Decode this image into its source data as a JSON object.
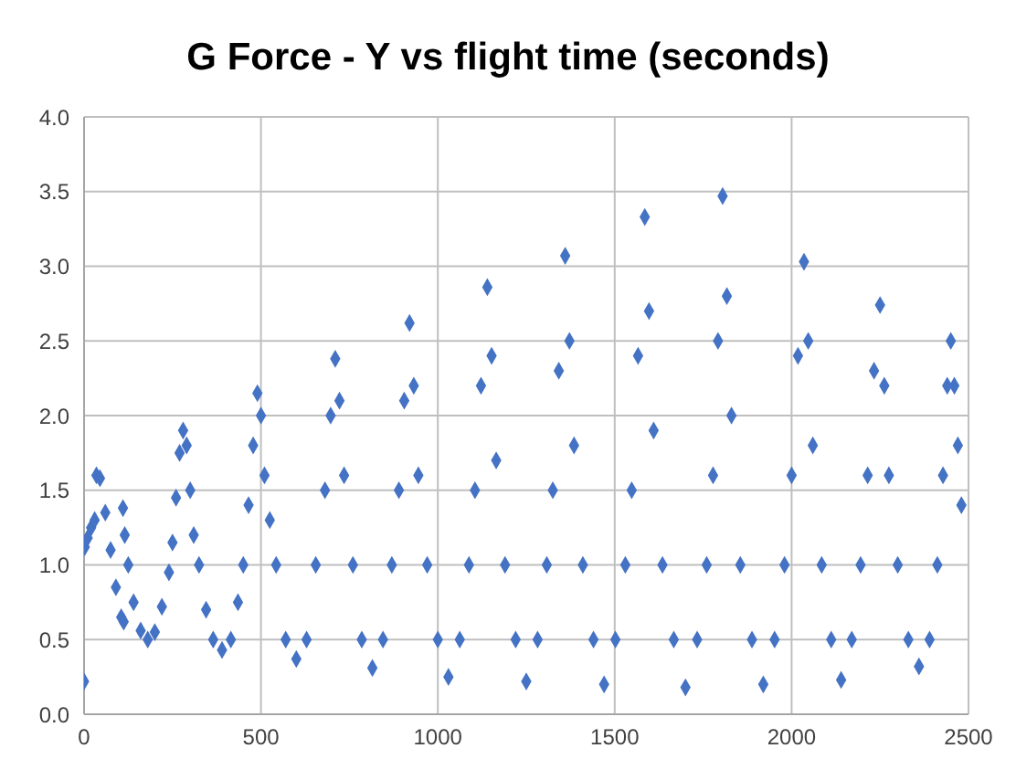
{
  "chart_data": {
    "type": "scatter",
    "title": "G Force - Y vs flight time (seconds)",
    "x": [
      0,
      2,
      10,
      20,
      30,
      35,
      45,
      60,
      75,
      90,
      105,
      112,
      110,
      115,
      125,
      140,
      160,
      180,
      200,
      220,
      240,
      250,
      260,
      270,
      280,
      290,
      300,
      310,
      325,
      345,
      365,
      390,
      415,
      435,
      450,
      465,
      478,
      490,
      500,
      510,
      525,
      543,
      570,
      600,
      629,
      655,
      681,
      697,
      710,
      722,
      735,
      760,
      785,
      815,
      845,
      870,
      890,
      905,
      920,
      932,
      945,
      970,
      1000,
      1030,
      1062,
      1088,
      1105,
      1122,
      1140,
      1152,
      1165,
      1190,
      1220,
      1250,
      1282,
      1308,
      1325,
      1342,
      1360,
      1372,
      1385,
      1410,
      1440,
      1470,
      1502,
      1530,
      1548,
      1566,
      1585,
      1597,
      1610,
      1635,
      1667,
      1700,
      1733,
      1760,
      1778,
      1792,
      1805,
      1817,
      1830,
      1855,
      1888,
      1920,
      1952,
      1980,
      2000,
      2018,
      2035,
      2047,
      2060,
      2085,
      2112,
      2140,
      2170,
      2195,
      2215,
      2233,
      2250,
      2262,
      2275,
      2300,
      2330,
      2360,
      2390,
      2412,
      2428,
      2440,
      2450,
      2460,
      2470,
      2480
    ],
    "values": [
      0.22,
      1.12,
      1.18,
      1.25,
      1.3,
      1.6,
      1.58,
      1.35,
      1.1,
      0.85,
      0.65,
      0.62,
      1.38,
      1.2,
      1.0,
      0.75,
      0.56,
      0.5,
      0.55,
      0.72,
      0.95,
      1.15,
      1.45,
      1.75,
      1.9,
      1.8,
      1.5,
      1.2,
      1.0,
      0.7,
      0.5,
      0.43,
      0.5,
      0.75,
      1.0,
      1.4,
      1.8,
      2.15,
      2.0,
      1.6,
      1.3,
      1.0,
      0.5,
      0.37,
      0.5,
      1.0,
      1.5,
      2.0,
      2.38,
      2.1,
      1.6,
      1.0,
      0.5,
      0.31,
      0.5,
      1.0,
      1.5,
      2.1,
      2.62,
      2.2,
      1.6,
      1.0,
      0.5,
      0.25,
      0.5,
      1.0,
      1.5,
      2.2,
      2.86,
      2.4,
      1.7,
      1.0,
      0.5,
      0.22,
      0.5,
      1.0,
      1.5,
      2.3,
      3.07,
      2.5,
      1.8,
      1.0,
      0.5,
      0.2,
      0.5,
      1.0,
      1.5,
      2.4,
      3.33,
      2.7,
      1.9,
      1.0,
      0.5,
      0.18,
      0.5,
      1.0,
      1.6,
      2.5,
      3.47,
      2.8,
      2.0,
      1.0,
      0.5,
      0.2,
      0.5,
      1.0,
      1.6,
      2.4,
      3.03,
      2.5,
      1.8,
      1.0,
      0.5,
      0.23,
      0.5,
      1.0,
      1.6,
      2.3,
      2.74,
      2.2,
      1.6,
      1.0,
      0.5,
      0.32,
      0.5,
      1.0,
      1.6,
      2.2,
      2.5,
      2.2,
      1.8,
      1.4
    ],
    "color": "#4472c4",
    "marker": "diamond",
    "grid": true,
    "xlim": [
      0,
      2500
    ],
    "xticks": [
      0,
      500,
      1000,
      1500,
      2000,
      2500
    ],
    "ylim": [
      0,
      4
    ],
    "yticks": [
      {
        "value": 0,
        "label": "0.0"
      },
      {
        "value": 0.5,
        "label": "0.5"
      },
      {
        "value": 1,
        "label": "1.0"
      },
      {
        "value": 1.5,
        "label": "1.5"
      },
      {
        "value": 2,
        "label": "2.0"
      },
      {
        "value": 2.5,
        "label": "2.5"
      },
      {
        "value": 3,
        "label": "3.0"
      },
      {
        "value": 3.5,
        "label": "3.5"
      },
      {
        "value": 4,
        "label": "4.0"
      }
    ]
  }
}
